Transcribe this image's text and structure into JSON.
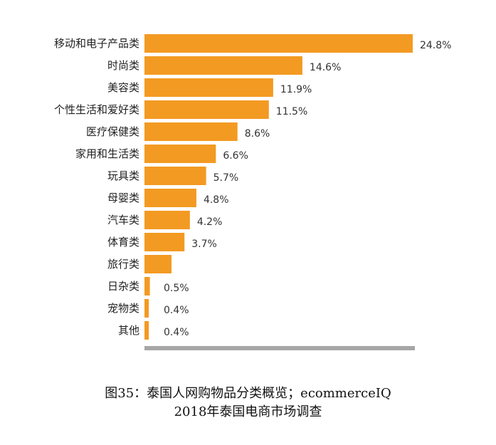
{
  "chart_data": {
    "type": "bar",
    "orientation": "horizontal",
    "categories": [
      "移动和电子产品类",
      "时尚类",
      "美容类",
      "个性生活和爱好类",
      "医疗保健类",
      "家用和生活类",
      "玩具类",
      "母婴类",
      "汽车类",
      "体育类",
      "旅行类",
      "日杂类",
      "宠物类",
      "其他"
    ],
    "values": [
      24.8,
      14.6,
      11.9,
      11.5,
      8.6,
      6.6,
      5.7,
      4.8,
      4.2,
      3.7,
      2.5,
      0.5,
      0.4,
      0.4
    ],
    "value_labels": [
      "24.8%",
      "14.6%",
      "11.9%",
      "11.5%",
      "8.6%",
      "6.6%",
      "5.7%",
      "4.8%",
      "4.2%",
      "3.7%",
      "",
      "0.5%",
      "0.4%",
      "0.4%"
    ],
    "xlim": [
      0,
      25
    ],
    "grid": false,
    "bar_color": "#f39a22",
    "baseline_color": "#a6a6a6"
  },
  "caption": {
    "line1": "图35：泰国人网购物品分类概览；ecommerceIQ",
    "line2": "2018年泰国电商市场调查"
  }
}
